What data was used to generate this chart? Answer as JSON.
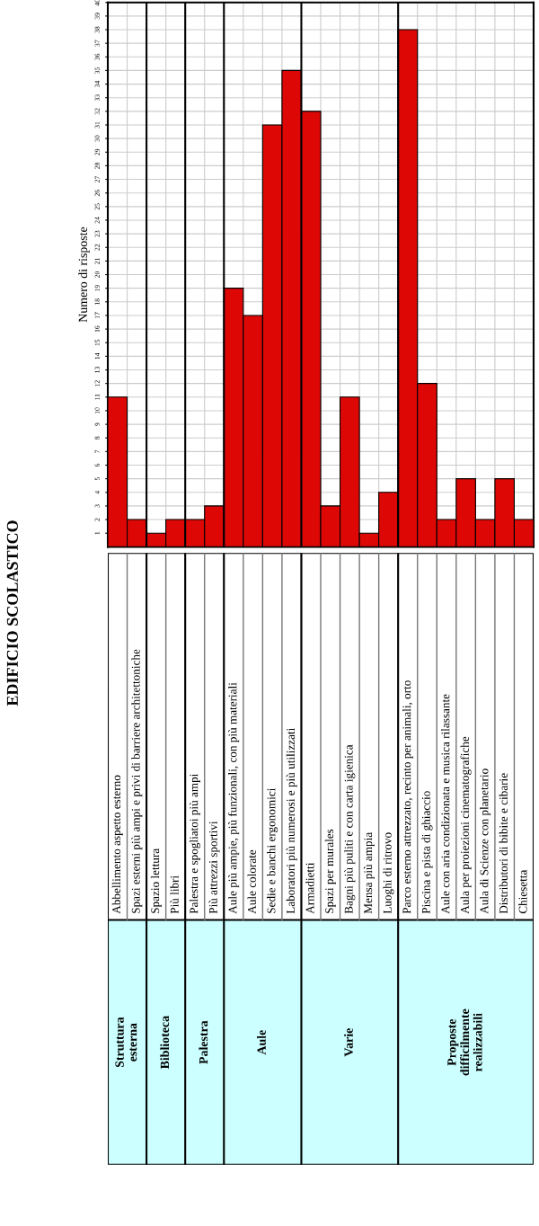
{
  "chart_data": {
    "type": "bar",
    "title": "EDIFICIO SCOLASTICO",
    "ylabel": "Numero di risposte",
    "categories": [
      "Abbellimento aspetto esterno",
      "Spazi esterni più ampi e privi di barriere architettoniche",
      "Spazio lettura",
      "Più libri",
      "Palestra e spogliatoi più ampi",
      "Più attrezzi sportivi",
      "Aule più ampie, più funzionali, con più materiali",
      "Aule colorate",
      "Sedie e banchi ergonomici",
      "Laboratori più numerosi e più utilizzati",
      "Armadietti",
      "Spazi per murales",
      "Bagni più puliti e con carta igienica",
      "Mensa più ampia",
      "Luoghi di ritrovo",
      "Parco esterno attrezzato, recinto per animali, orto",
      "Piscina e pista di ghiaccio",
      "Aule con aria condizionata e musica rilassante",
      "Aula per proiezioni cinematografiche",
      "Aula di Scienze con planetario",
      "Distributori di bibite e cibarie",
      "Chiesetta"
    ],
    "values": [
      11,
      2,
      1,
      2,
      2,
      3,
      19,
      17,
      31,
      35,
      32,
      3,
      11,
      1,
      4,
      38,
      12,
      2,
      5,
      2,
      5,
      2
    ],
    "color": "#dd0806",
    "ylim": [
      0,
      40
    ],
    "yticks": [
      1,
      2,
      3,
      4,
      5,
      6,
      7,
      8,
      9,
      10,
      11,
      12,
      13,
      14,
      15,
      16,
      17,
      18,
      19,
      20,
      21,
      22,
      23,
      24,
      25,
      26,
      27,
      28,
      29,
      30,
      31,
      32,
      33,
      34,
      35,
      36,
      37,
      38,
      39,
      40
    ],
    "grid": true,
    "annotations": [
      "Struttura\nesterna",
      "Biblioteca",
      "Palestra",
      "Aule",
      "Varie",
      "Proposte\ndifficilmente\nrealizzabili"
    ]
  }
}
